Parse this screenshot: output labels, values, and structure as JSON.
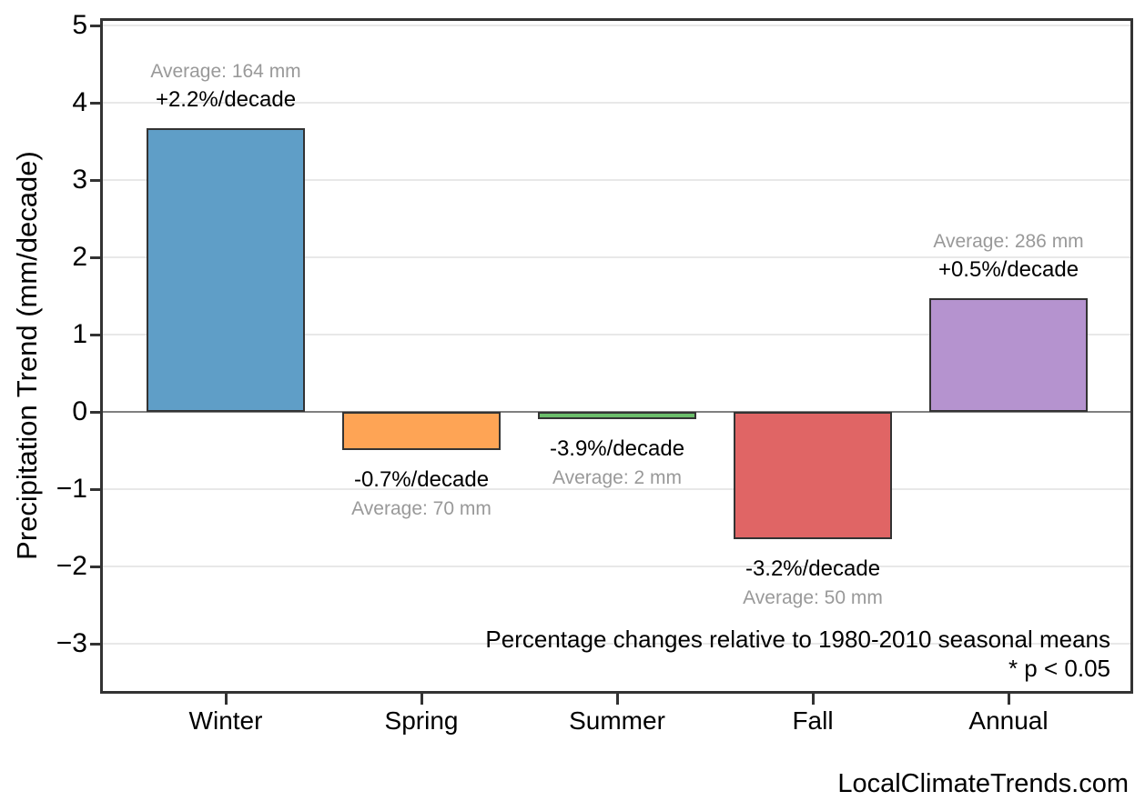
{
  "chart_data": {
    "type": "bar",
    "title": "",
    "categories": [
      "Winter",
      "Spring",
      "Summer",
      "Fall",
      "Annual"
    ],
    "values": [
      3.67,
      -0.49,
      -0.09,
      -1.65,
      1.47
    ],
    "bar_colors": [
      "#5F9EC7",
      "#FEA455",
      "#6ABD6A",
      "#E06565",
      "#B593CF"
    ],
    "bar_edge_color": "#333333",
    "bar_labels": [
      {
        "percent": "+2.2%/decade",
        "average": "Average: 164 mm"
      },
      {
        "percent": "-0.7%/decade",
        "average": "Average: 70 mm"
      },
      {
        "percent": "-3.9%/decade",
        "average": "Average: 2 mm"
      },
      {
        "percent": "-3.2%/decade",
        "average": "Average: 50 mm"
      },
      {
        "percent": "+0.5%/decade",
        "average": "Average: 286 mm"
      }
    ],
    "xlabel": "",
    "ylabel": "Precipitation Trend (mm/decade)",
    "y_ticks": [
      5,
      4,
      3,
      2,
      1,
      0,
      -1,
      -2,
      -3
    ],
    "y_tick_labels": [
      "5",
      "4",
      "3",
      "2",
      "1",
      "0",
      "−1",
      "−2",
      "−3"
    ],
    "ylim": [
      -3.66,
      5.09
    ],
    "grid": "horizontal",
    "legend": "none",
    "annotations": [
      "Percentage changes relative to 1980-2010 seasonal means",
      "* p < 0.05"
    ]
  },
  "colors": {
    "axis": "#333333",
    "grid": "#e8e8e8",
    "zero_line": "#808080",
    "average_label_gray": "#999999",
    "text": "#000000",
    "background": "#ffffff"
  },
  "footer": {
    "watermark": "LocalClimateTrends.com"
  }
}
